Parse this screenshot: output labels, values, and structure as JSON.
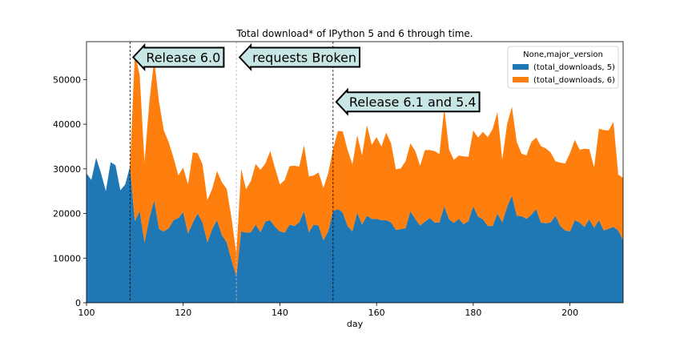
{
  "chart_data": {
    "type": "area",
    "stacked": true,
    "title": "Total download* of IPython 5 and 6 through time.",
    "xlabel": "day",
    "ylabel": "",
    "xlim": [
      100,
      211
    ],
    "ylim": [
      0,
      58500
    ],
    "xticks": [
      100,
      120,
      140,
      160,
      180,
      200
    ],
    "yticks": [
      0,
      10000,
      20000,
      30000,
      40000,
      50000
    ],
    "legend": {
      "title": "None,major_version",
      "position": "top-right"
    },
    "x": [
      100,
      101,
      102,
      103,
      104,
      105,
      106,
      107,
      108,
      109,
      110,
      111,
      112,
      113,
      114,
      115,
      116,
      117,
      118,
      119,
      120,
      121,
      122,
      123,
      124,
      125,
      126,
      127,
      128,
      129,
      130,
      131,
      132,
      133,
      134,
      135,
      136,
      137,
      138,
      139,
      140,
      141,
      142,
      143,
      144,
      145,
      146,
      147,
      148,
      149,
      150,
      151,
      152,
      153,
      154,
      155,
      156,
      157,
      158,
      159,
      160,
      161,
      162,
      163,
      164,
      165,
      166,
      167,
      168,
      169,
      170,
      171,
      172,
      173,
      174,
      175,
      176,
      177,
      178,
      179,
      180,
      181,
      182,
      183,
      184,
      185,
      186,
      187,
      188,
      189,
      190,
      191,
      192,
      193,
      194,
      195,
      196,
      197,
      198,
      199,
      200,
      201,
      202,
      203,
      204,
      205,
      206,
      207,
      208,
      209,
      210,
      211
    ],
    "series": [
      {
        "name": "(total_downloads, 5)",
        "color": "#1f77b4",
        "values": [
          29000,
          27500,
          32500,
          29000,
          25000,
          31500,
          30800,
          25200,
          26500,
          30500,
          18300,
          20500,
          13500,
          19000,
          23000,
          16500,
          16000,
          16700,
          18500,
          19000,
          20300,
          15500,
          18000,
          20000,
          18000,
          13500,
          16500,
          18500,
          15200,
          13500,
          9500,
          5900,
          16000,
          15700,
          15800,
          17500,
          15800,
          18200,
          18500,
          17000,
          16000,
          15700,
          17500,
          17200,
          18000,
          20500,
          15800,
          17500,
          17300,
          14000,
          16000,
          20500,
          21000,
          20200,
          17200,
          16000,
          20200,
          17500,
          19500,
          18800,
          18800,
          18500,
          18500,
          18000,
          16300,
          16500,
          16700,
          20500,
          18800,
          17300,
          18200,
          19000,
          18000,
          18000,
          21600,
          18700,
          17900,
          18800,
          17600,
          18300,
          21600,
          19300,
          18700,
          17200,
          17200,
          20000,
          18000,
          21500,
          24000,
          19500,
          19400,
          18800,
          19700,
          21000,
          18000,
          17800,
          18000,
          19500,
          17200,
          16200,
          16000,
          18500,
          18000,
          17000,
          18700,
          16800,
          18500,
          16200,
          16600,
          17000,
          16200,
          14000
        ]
      },
      {
        "name": "(total_downloads, 6)",
        "color": "#ff7f0e",
        "values": [
          0,
          0,
          0,
          0,
          0,
          0,
          0,
          0,
          0,
          0,
          37500,
          30500,
          18000,
          26000,
          31500,
          28500,
          22600,
          19300,
          14000,
          9500,
          10000,
          11000,
          15700,
          13500,
          13000,
          9500,
          9000,
          11000,
          11800,
          12000,
          9500,
          5100,
          14000,
          9700,
          11500,
          13600,
          14000,
          13000,
          15500,
          13200,
          10500,
          11800,
          13100,
          13500,
          12500,
          14800,
          12500,
          11000,
          11900,
          11700,
          13000,
          13900,
          17500,
          18200,
          17100,
          15000,
          17300,
          15500,
          20300,
          16600,
          18300,
          16500,
          19600,
          17700,
          13600,
          13600,
          15000,
          15200,
          15200,
          13400,
          16000,
          15200,
          16000,
          15300,
          22000,
          15600,
          14100,
          14200,
          15200,
          14400,
          17000,
          17700,
          19600,
          19900,
          21700,
          22700,
          14000,
          18500,
          19900,
          16500,
          14000,
          14200,
          16300,
          16000,
          17100,
          16800,
          15700,
          12200,
          14200,
          15000,
          17500,
          18000,
          16300,
          17500,
          15700,
          13500,
          20500,
          22500,
          22000,
          23500,
          12500,
          14000
        ]
      }
    ],
    "annotations": [
      {
        "text": "Release 6.0",
        "x": 109,
        "y": 55000,
        "line_x": 109,
        "line_style": "dashed"
      },
      {
        "text": "requests Broken",
        "x": 131,
        "y": 55000,
        "line_x": 131,
        "line_style": "dashed-light"
      },
      {
        "text": "Release 6.1 and 5.4",
        "x": 151,
        "y": 45000,
        "line_x": 151,
        "line_style": "dashed"
      }
    ]
  }
}
